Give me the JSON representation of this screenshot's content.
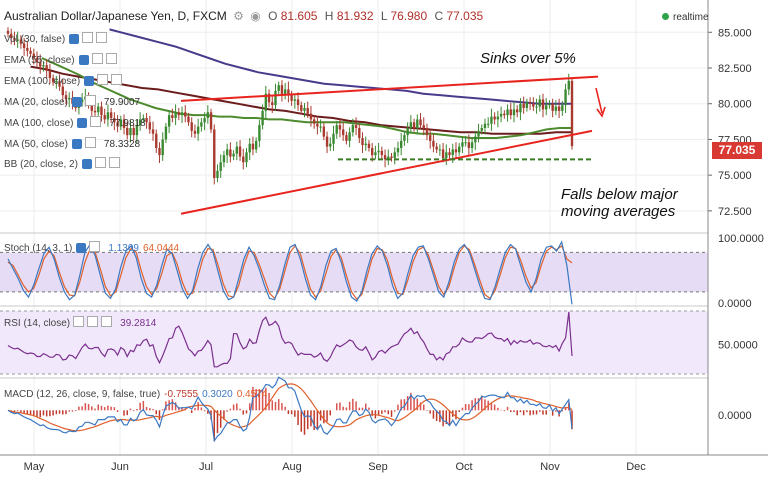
{
  "header": {
    "title": "Australian Dollar/Japanese Yen, D, FXCM",
    "open_label": "O",
    "open": "81.605",
    "high_label": "H",
    "high": "81.932",
    "low_label": "L",
    "low": "76.980",
    "close_label": "C",
    "close": "77.035",
    "realtime": "realtime"
  },
  "indicators": {
    "vol": "Vol (30, false)",
    "ema55": "EMA (55, close)",
    "ema100": "EMA (100, close)",
    "ma20": "MA (20, close)",
    "ma20_val": "79.9007",
    "ma100": "MA (100, close)",
    "ma100_val": "77.9818",
    "ma50": "MA (50, close)",
    "ma50_val": "78.3328",
    "bb": "BB (20, close, 2)",
    "stoch": "Stoch (14, 3, 1)",
    "stoch_k": "1.1309",
    "stoch_d": "64.0444",
    "rsi": "RSI (14, close)",
    "rsi_val": "39.2814",
    "macd": "MACD (12, 26, close, 9, false, true)",
    "macd_h": "-0.7555",
    "macd_s": "0.3020",
    "macd_m": "0.4574"
  },
  "annotations": {
    "sinks": "Sinks over 5%",
    "falls_1": "Falls below major",
    "falls_2": "moving averages"
  },
  "current_price": "77.035",
  "chart_data": {
    "type": "candlestick",
    "title": "Australian Dollar/Japanese Yen, D, FXCM",
    "price_axis": {
      "ticks": [
        "85.000",
        "82.500",
        "80.000",
        "77.500",
        "75.000",
        "72.500"
      ],
      "ylim": [
        71.3,
        86.0
      ]
    },
    "stoch_axis": {
      "ticks": [
        "100.0000",
        "0.0000"
      ],
      "ylim": [
        0,
        105
      ]
    },
    "rsi_axis": {
      "ticks": [
        "50.0000"
      ],
      "ylim": [
        18,
        88
      ]
    },
    "macd_axis": {
      "ticks": [
        "0.0000"
      ],
      "ylim": [
        -2.2,
        1.6
      ]
    },
    "x_ticks": [
      "May",
      "Jun",
      "Jul",
      "Aug",
      "Sep",
      "Oct",
      "Nov",
      "Dec"
    ],
    "candles_close": [
      84.9,
      84.6,
      84.4,
      84.5,
      84.2,
      83.9,
      83.7,
      83.5,
      83.2,
      82.9,
      82.6,
      82.7,
      82.3,
      81.8,
      81.5,
      81.6,
      81.2,
      80.6,
      80.3,
      80.4,
      80.0,
      79.7,
      80.1,
      80.3,
      80.5,
      80.0,
      79.5,
      79.4,
      79.8,
      79.2,
      78.9,
      79.4,
      79.0,
      78.7,
      78.4,
      78.9,
      78.3,
      77.8,
      78.3,
      77.8,
      78.5,
      78.9,
      79.0,
      78.7,
      78.2,
      77.9,
      76.9,
      76.4,
      77.5,
      78.4,
      79.2,
      79.0,
      79.4,
      79.2,
      79.4,
      79.1,
      78.7,
      78.1,
      77.9,
      78.4,
      78.7,
      79.0,
      79.4,
      78.2,
      74.8,
      75.3,
      75.9,
      76.4,
      76.8,
      76.3,
      76.5,
      77.0,
      76.3,
      75.9,
      76.6,
      77.2,
      76.8,
      77.4,
      78.5,
      79.5,
      80.7,
      80.1,
      79.9,
      80.9,
      81.3,
      80.6,
      81.0,
      80.6,
      80.2,
      80.3,
      79.9,
      79.5,
      79.7,
      79.3,
      78.9,
      78.6,
      78.4,
      78.4,
      77.7,
      77.0,
      77.2,
      77.9,
      78.5,
      78.2,
      77.8,
      77.4,
      78.0,
      78.5,
      78.3,
      77.6,
      77.1,
      77.2,
      76.9,
      76.4,
      76.6,
      76.7,
      76.4,
      76.1,
      76.3,
      76.2,
      76.6,
      76.9,
      77.4,
      77.8,
      78.3,
      78.7,
      78.3,
      78.9,
      78.5,
      78.3,
      77.8,
      77.4,
      77.0,
      76.8,
      76.8,
      76.2,
      76.6,
      76.4,
      76.8,
      76.6,
      77.0,
      77.3,
      77.3,
      76.9,
      77.3,
      77.7,
      78.1,
      78.3,
      78.6,
      78.6,
      79.1,
      78.9,
      79.1,
      79.3,
      79.2,
      79.6,
      79.2,
      79.6,
      79.4,
      80.0,
      79.7,
      80.1,
      80.0,
      79.8,
      79.8,
      80.3,
      79.6,
      79.9,
      80.0,
      79.5,
      79.8,
      79.5,
      79.9,
      81.0,
      81.6,
      77.035
    ],
    "ma20": [
      84.9,
      84.9,
      84.8,
      84.7,
      84.5,
      84.2,
      83.8,
      83.4,
      83.0,
      82.6,
      82.2,
      81.8,
      81.4,
      81.0,
      80.7,
      80.4,
      80.2,
      80.0,
      79.8,
      79.6,
      79.4,
      79.2,
      79.0,
      78.8,
      78.6,
      78.4,
      78.2,
      78.0,
      78.1,
      78.2,
      78.3,
      78.4,
      78.3,
      78.1,
      77.8,
      77.5,
      77.4,
      77.3,
      77.2,
      77.4,
      77.7,
      78.1,
      78.6,
      79.1,
      79.4,
      79.6,
      79.8,
      79.9,
      79.8,
      79.6,
      79.3,
      79.0,
      78.8,
      78.6,
      78.4,
      78.2,
      78.0,
      77.9,
      77.8,
      77.8,
      77.8,
      77.8,
      77.9,
      77.9,
      78.0,
      78.0,
      78.2,
      78.4,
      78.6,
      78.8,
      79.0,
      79.2,
      79.5,
      79.7,
      79.9,
      80.0,
      79.9
    ],
    "ma50": [
      83.2,
      82.8,
      82.4,
      82.0,
      81.5,
      81.1,
      80.7,
      80.3,
      80.0,
      79.7,
      79.5,
      79.3,
      79.2,
      79.2,
      79.1,
      79.1,
      79.0,
      79.0,
      78.9,
      78.9,
      78.8,
      78.7,
      78.7,
      78.7,
      78.7,
      78.6,
      78.5,
      78.4,
      78.2,
      78.0,
      77.9,
      77.9,
      77.8,
      77.7,
      77.6,
      77.6,
      77.6,
      77.7,
      77.8,
      78.0,
      78.2,
      78.3,
      78.3
    ],
    "ma100": [
      82.6,
      82.4,
      82.1,
      81.9,
      81.7,
      81.5,
      81.3,
      81.1,
      81.0,
      80.8,
      80.6,
      80.4,
      80.2,
      80.0,
      79.8,
      79.6,
      79.5,
      79.3,
      79.1,
      79.0,
      78.8,
      78.7,
      78.5,
      78.4,
      78.3,
      78.2,
      78.1,
      78.0,
      78.0,
      77.9,
      77.9,
      77.9,
      77.9,
      78.0,
      78.0
    ],
    "ema55": [
      85.2,
      84.9,
      84.6,
      84.3,
      84.0,
      83.6,
      83.2,
      82.8,
      82.5,
      82.2,
      82.0,
      81.8,
      81.6,
      81.4,
      81.3,
      81.2,
      81.1,
      81.0,
      80.9,
      80.7,
      80.6,
      80.5,
      80.4,
      80.3,
      80.2,
      80.1,
      80.0,
      80.0,
      80.0
    ],
    "trendlines": [
      {
        "name": "upper",
        "from": [
          80.2,
          81.9
        ],
        "color": "#e8241e"
      },
      {
        "name": "lower",
        "from": [
          72.3,
          78.1
        ],
        "color": "#e8241e"
      },
      {
        "name": "support",
        "level": 76.1,
        "style": "dashed",
        "color": "#3d7a24"
      }
    ],
    "stoch_k": [
      70,
      55,
      40,
      22,
      12,
      30,
      55,
      78,
      88,
      70,
      42,
      20,
      8,
      15,
      45,
      80,
      92,
      75,
      45,
      18,
      10,
      25,
      58,
      82,
      90,
      72,
      40,
      18,
      12,
      30,
      60,
      85,
      78,
      52,
      25,
      10,
      22,
      55,
      80,
      92,
      80,
      50,
      22,
      8,
      12,
      40,
      70,
      88,
      75,
      55,
      30,
      10,
      8,
      30,
      62,
      88,
      92,
      70,
      40,
      15,
      8,
      28,
      60,
      82,
      86,
      65,
      35,
      12,
      6,
      20,
      52,
      78,
      90,
      82,
      60,
      30,
      10,
      18,
      48,
      75,
      88,
      90,
      70,
      45,
      20,
      12,
      35,
      65,
      85,
      92,
      80,
      55,
      30,
      10,
      8,
      28,
      55,
      80,
      92,
      85,
      60,
      35,
      20,
      40,
      70,
      88,
      90,
      82,
      96,
      60,
      1
    ],
    "stoch_d": [
      65,
      60,
      45,
      30,
      20,
      25,
      45,
      70,
      82,
      75,
      50,
      28,
      15,
      14,
      35,
      65,
      85,
      80,
      55,
      28,
      14,
      20,
      45,
      72,
      86,
      80,
      52,
      28,
      16,
      25,
      48,
      75,
      80,
      62,
      35,
      16,
      18,
      42,
      70,
      86,
      84,
      60,
      32,
      14,
      12,
      30,
      60,
      82,
      80,
      62,
      40,
      18,
      10,
      24,
      52,
      80,
      90,
      78,
      50,
      24,
      12,
      22,
      48,
      74,
      84,
      72,
      45,
      20,
      9,
      16,
      42,
      70,
      86,
      84,
      68,
      40,
      18,
      16,
      38,
      66,
      84,
      88,
      76,
      52,
      28,
      16,
      28,
      56,
      80,
      90,
      84,
      62,
      38,
      16,
      10,
      22,
      46,
      72,
      88,
      86,
      68,
      44,
      26,
      34,
      60,
      82,
      88,
      84,
      90,
      70,
      64
    ]
  }
}
